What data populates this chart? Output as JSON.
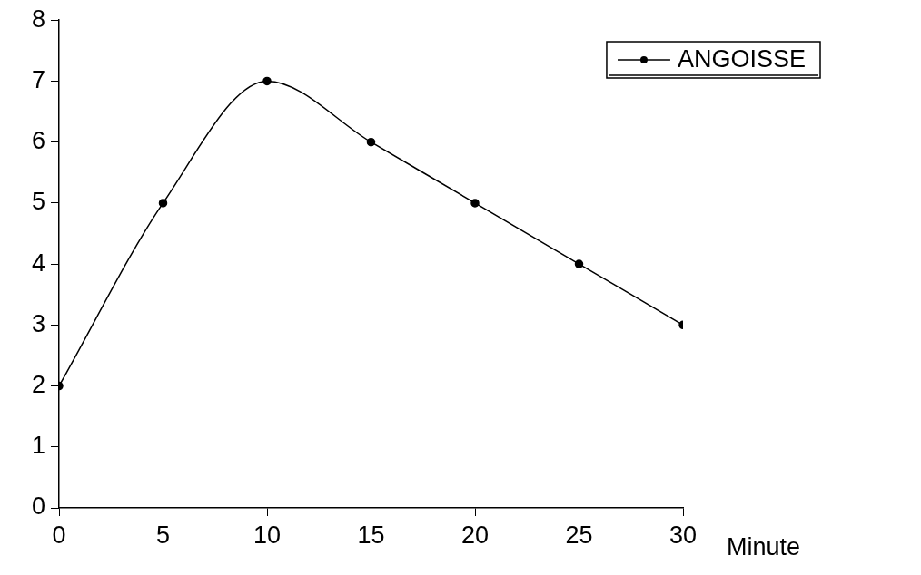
{
  "chart_data": {
    "type": "line",
    "xlabel": "Minute",
    "x": [
      0,
      5,
      10,
      15,
      20,
      25,
      30
    ],
    "series": [
      {
        "name": "ANGOISSE",
        "color": "#000000",
        "values": [
          2,
          5,
          7,
          6,
          5,
          4,
          3
        ]
      }
    ],
    "xlim": [
      0,
      30
    ],
    "xticks": [
      0,
      5,
      10,
      15,
      20,
      25,
      30
    ],
    "ylim": [
      0,
      8
    ],
    "yticks": [
      0,
      1,
      2,
      3,
      4,
      5,
      6,
      7,
      8
    ],
    "grid": false,
    "legend": "top right",
    "marker": "circle",
    "line_style": "solid"
  }
}
